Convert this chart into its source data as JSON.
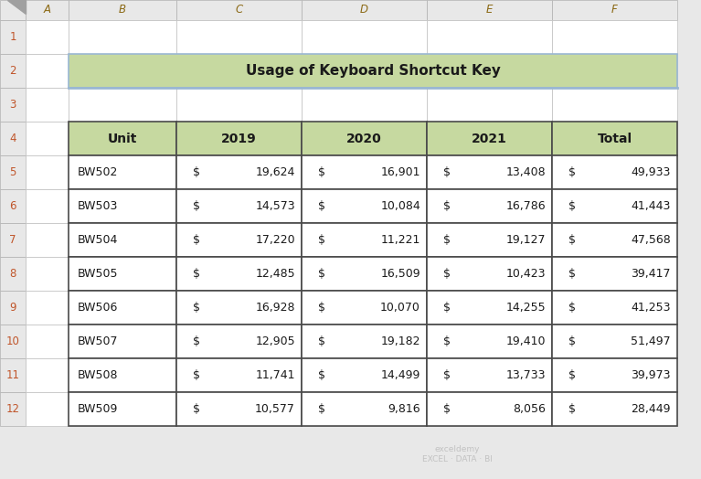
{
  "title": "Usage of Keyboard Shortcut Key",
  "title_bg": "#c6d9a0",
  "title_border": "#9ab7d3",
  "header_bg": "#c6d9a0",
  "header_border": "#4a4a4a",
  "cell_border": "#4a4a4a",
  "spreadsheet_bg": "#e8e8e8",
  "col_labels": [
    "A",
    "B",
    "C",
    "D",
    "E",
    "F"
  ],
  "row_labels": [
    "1",
    "2",
    "3",
    "4",
    "5",
    "6",
    "7",
    "8",
    "9",
    "10",
    "11",
    "12"
  ],
  "headers": [
    "Unit",
    "2019",
    "2020",
    "2021",
    "Total"
  ],
  "units": [
    "BW502",
    "BW503",
    "BW504",
    "BW505",
    "BW506",
    "BW507",
    "BW508",
    "BW509"
  ],
  "data_2019": [
    19624,
    14573,
    17220,
    12485,
    16928,
    12905,
    11741,
    10577
  ],
  "data_2020": [
    16901,
    10084,
    11221,
    16509,
    10070,
    19182,
    14499,
    9816
  ],
  "data_2021": [
    13408,
    16786,
    19127,
    10423,
    14255,
    19410,
    13733,
    8056
  ],
  "data_total": [
    49933,
    41443,
    47568,
    39417,
    41253,
    51497,
    39973,
    28449
  ],
  "font_color": "#1a1a1a",
  "row_num_color": "#c0552a",
  "col_letter_color": "#8b6914",
  "grid_line_color": "#c0c0c0",
  "cell_white": "#ffffff",
  "col_hdr_bg": "#e8e8e8",
  "row_hdr_bg": "#e8e8e8"
}
